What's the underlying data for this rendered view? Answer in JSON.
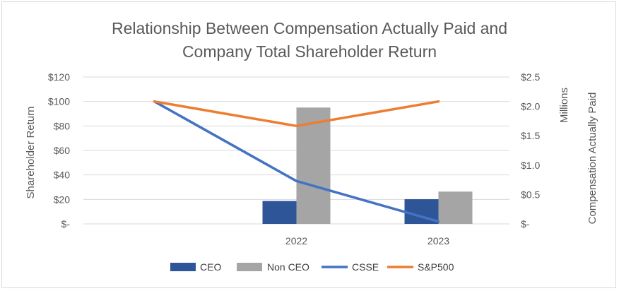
{
  "chart_data": {
    "type": "bar",
    "title_lines": [
      "Relationship Between Compensation Actually Paid and",
      "Company Total Shareholder Return"
    ],
    "categories": [
      "",
      "2022",
      "2023"
    ],
    "left_axis": {
      "label": "Shareholder Return",
      "ylim": [
        0,
        120
      ],
      "ticks": [
        0,
        20,
        40,
        60,
        80,
        100,
        120
      ],
      "tick_labels": [
        "$-",
        "$20",
        "$40",
        "$60",
        "$80",
        "$100",
        "$120"
      ]
    },
    "right_axis": {
      "label": "Compensation Actually Paid",
      "units_label": "Millions",
      "ylim": [
        0,
        2.5
      ],
      "ticks": [
        0,
        0.5,
        1.0,
        1.5,
        2.0,
        2.5
      ],
      "tick_labels": [
        "$-",
        "$0.5",
        "$1.0",
        "$1.5",
        "$2.0",
        "$2.5"
      ]
    },
    "series": [
      {
        "name": "CEO",
        "kind": "bar",
        "axis": "right",
        "color": "#2e5597",
        "values": [
          null,
          0.39,
          0.42
        ]
      },
      {
        "name": "Non CEO",
        "kind": "bar",
        "axis": "right",
        "color": "#a5a5a5",
        "values": [
          null,
          1.98,
          0.55
        ]
      },
      {
        "name": "CSSE",
        "kind": "line",
        "axis": "left",
        "color": "#4472c4",
        "values": [
          100,
          35,
          2
        ]
      },
      {
        "name": "S&P500",
        "kind": "line",
        "axis": "left",
        "color": "#ed7d31",
        "values": [
          100,
          80,
          100
        ]
      }
    ],
    "legend_position": "bottom"
  }
}
